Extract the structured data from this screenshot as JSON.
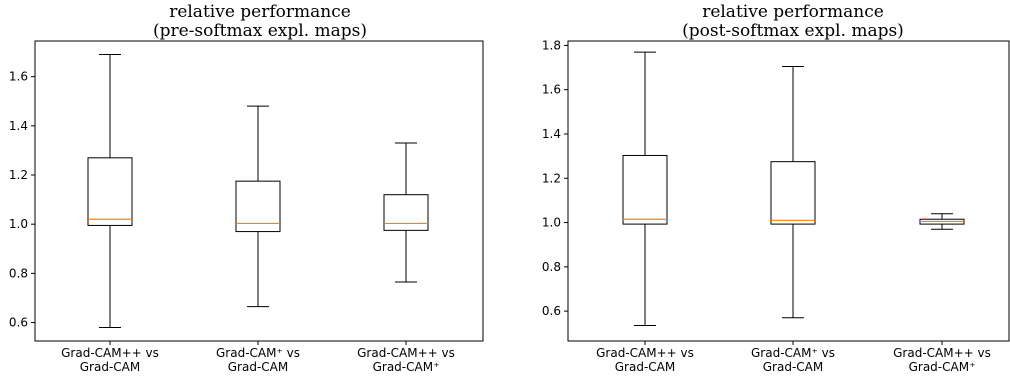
{
  "chart_data": [
    {
      "type": "box",
      "title": [
        "relative performance",
        "(pre-softmax expl. maps)"
      ],
      "categories": [
        [
          "Grad-CAM++ vs",
          "Grad-CAM"
        ],
        [
          "Grad-CAM⁺ vs",
          "Grad-CAM"
        ],
        [
          "Grad-CAM++ vs",
          "Grad-CAM⁺"
        ]
      ],
      "boxes": [
        {
          "min": 0.58,
          "q1": 0.995,
          "median": 1.02,
          "q3": 1.27,
          "max": 1.69
        },
        {
          "min": 0.665,
          "q1": 0.97,
          "median": 1.003,
          "q3": 1.175,
          "max": 1.48
        },
        {
          "min": 0.765,
          "q1": 0.975,
          "median": 1.003,
          "q3": 1.12,
          "max": 1.33
        }
      ],
      "yticks": [
        0.6,
        0.8,
        1.0,
        1.2,
        1.4,
        1.6
      ],
      "ytick_labels": [
        "0.6",
        "0.8",
        "1.0",
        "1.2",
        "1.4",
        "1.6"
      ],
      "ylim": [
        0.525,
        1.745
      ],
      "grid": false,
      "colors": {
        "median": "#ff7f0e",
        "box": "#000000"
      }
    },
    {
      "type": "box",
      "title": [
        "relative performance",
        "(post-softmax expl. maps)"
      ],
      "categories": [
        [
          "Grad-CAM++ vs",
          "Grad-CAM"
        ],
        [
          "Grad-CAM⁺ vs",
          "Grad-CAM"
        ],
        [
          "Grad-CAM++ vs",
          "Grad-CAM⁺"
        ]
      ],
      "boxes": [
        {
          "min": 0.535,
          "q1": 0.993,
          "median": 1.015,
          "q3": 1.303,
          "max": 1.77
        },
        {
          "min": 0.57,
          "q1": 0.993,
          "median": 1.01,
          "q3": 1.275,
          "max": 1.705
        },
        {
          "min": 0.97,
          "q1": 0.993,
          "median": 1.005,
          "q3": 1.015,
          "max": 1.04
        }
      ],
      "yticks": [
        0.6,
        0.8,
        1.0,
        1.2,
        1.4,
        1.6,
        1.8
      ],
      "ytick_labels": [
        "0.6",
        "0.8",
        "1.0",
        "1.2",
        "1.4",
        "1.6",
        "1.8"
      ],
      "ylim": [
        0.465,
        1.82
      ],
      "grid": false,
      "colors": {
        "median": "#ff7f0e",
        "box": "#000000"
      }
    }
  ]
}
